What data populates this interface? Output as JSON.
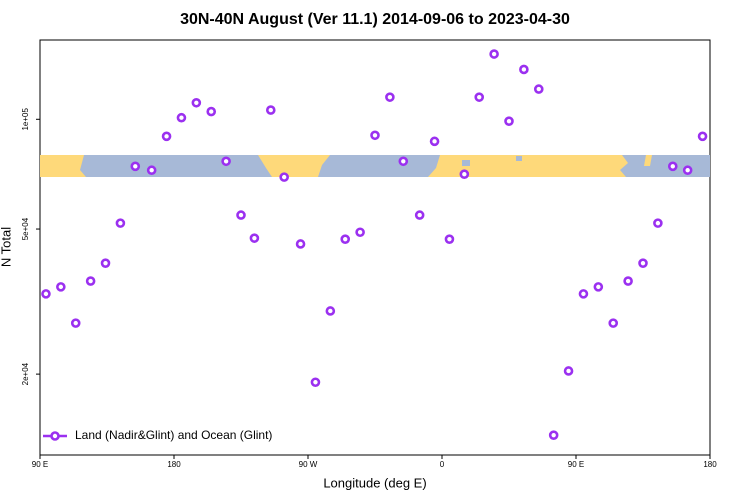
{
  "chart_data": {
    "type": "scatter",
    "title": "30N-40N August (Ver 11.1)   2014-09-06 to 2023-04-30",
    "x_label": "Longitude (deg E)",
    "y_label": "N Total",
    "yscale": "log",
    "legend_position": "bottom left",
    "xlim": [
      90,
      540
    ],
    "ylim": [
      12000,
      165000
    ],
    "xticks": [
      {
        "value": 90,
        "label": "90 E"
      },
      {
        "value": 180,
        "label": "180"
      },
      {
        "value": 270,
        "label": "90 W"
      },
      {
        "value": 360,
        "label": "0"
      },
      {
        "value": 450,
        "label": "90 E"
      },
      {
        "value": 540,
        "label": "180"
      }
    ],
    "yticks": [
      {
        "value": 20000,
        "label": "2e+04"
      },
      {
        "value": 50000,
        "label": "5e+04"
      },
      {
        "value": 100000,
        "label": "1e+05"
      }
    ],
    "series": [
      {
        "name": "Land (Nadir&Glint) and Ocean (Glint)",
        "color": "#9b30f0",
        "x": [
          94,
          104,
          114,
          124,
          134,
          144,
          154,
          165,
          175,
          185,
          195,
          205,
          215,
          225,
          234,
          245,
          254,
          265,
          275,
          285,
          295,
          305,
          315,
          325,
          334,
          345,
          355,
          365,
          375,
          385,
          395,
          405,
          415,
          425,
          435,
          445,
          455,
          465,
          475,
          485,
          495,
          505,
          515,
          525,
          535
        ],
        "values": [
          33200,
          34700,
          27600,
          36000,
          40300,
          51900,
          74300,
          72500,
          89800,
          101000,
          111000,
          105000,
          76700,
          54600,
          47200,
          106000,
          69400,
          45500,
          19000,
          29800,
          46900,
          49000,
          90400,
          115000,
          76700,
          54600,
          87000,
          46900,
          70700,
          115000,
          151000,
          98800,
          137000,
          121000,
          13600,
          20400,
          33200,
          34700,
          27600,
          36000,
          40300,
          51900,
          74300,
          72500,
          89800
        ]
      }
    ]
  }
}
